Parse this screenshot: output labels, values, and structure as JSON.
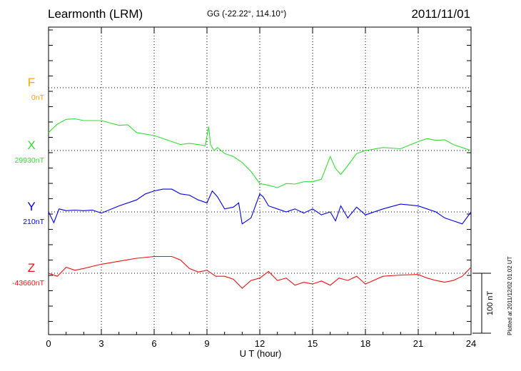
{
  "header": {
    "station": "Learmonth (LRM)",
    "coords": "GG (-22.22°, 114.10°)",
    "date": "2011/11/01"
  },
  "footer": {
    "plotted": "Plotted at 2011/12/02 01:02 UT"
  },
  "chart_data": {
    "type": "line",
    "title": "Learmonth (LRM)",
    "xlabel": "U T (hour)",
    "xlim": [
      0,
      24
    ],
    "x_ticks": [
      0,
      3,
      6,
      9,
      12,
      15,
      18,
      21,
      24
    ],
    "grid": true,
    "scale_bar": {
      "label": "100 nT",
      "value_nT": 100
    },
    "series": [
      {
        "name": "F",
        "baseline_label": "0nT",
        "color": "#ffa500",
        "x": [],
        "y": []
      },
      {
        "name": "X",
        "baseline_label": "29930nT",
        "color": "#33dd33",
        "x": [
          0,
          0.5,
          1,
          1.5,
          2,
          3,
          4,
          4.5,
          5,
          6,
          7,
          7.5,
          8,
          8.5,
          8.9,
          9.1,
          9.2,
          9.4,
          9.6,
          10,
          10.5,
          11,
          11.5,
          12,
          12.5,
          13,
          13.5,
          14,
          14.5,
          15,
          15.5,
          16,
          16.3,
          16.6,
          17,
          17.5,
          18,
          19,
          20,
          21,
          21.5,
          22,
          22.5,
          23,
          23.5,
          24
        ],
        "y": [
          30,
          44,
          52,
          53,
          50,
          50,
          42,
          43,
          30,
          25,
          15,
          10,
          12,
          10,
          8,
          40,
          10,
          0,
          5,
          -5,
          -10,
          -20,
          -35,
          -55,
          -58,
          -62,
          -55,
          -56,
          -52,
          -52,
          -48,
          -10,
          -30,
          -40,
          -25,
          -5,
          0,
          5,
          3,
          15,
          20,
          17,
          18,
          10,
          5,
          0
        ]
      },
      {
        "name": "Y",
        "baseline_label": "210nT",
        "color": "#0000ee",
        "x": [
          0,
          0.3,
          0.6,
          1,
          1.5,
          2,
          2.5,
          3,
          4,
          5,
          5.5,
          6,
          6.5,
          7,
          7.5,
          8,
          8.5,
          9,
          9.3,
          9.6,
          10,
          10.5,
          10.8,
          11,
          11.5,
          12,
          12.2,
          12.5,
          13,
          13.5,
          14,
          14.5,
          15,
          15.5,
          16,
          16.3,
          16.6,
          17,
          17.5,
          18,
          19,
          20,
          21,
          21.5,
          22,
          22.5,
          23,
          23.5,
          24
        ],
        "y": [
          0,
          -18,
          5,
          2,
          3,
          2,
          3,
          -2,
          10,
          20,
          30,
          35,
          38,
          38,
          30,
          28,
          20,
          15,
          35,
          25,
          5,
          8,
          15,
          -20,
          -10,
          30,
          25,
          10,
          5,
          0,
          5,
          -2,
          5,
          -5,
          0,
          -15,
          10,
          -10,
          8,
          -5,
          5,
          13,
          10,
          5,
          0,
          -10,
          -15,
          -20,
          0
        ]
      },
      {
        "name": "Z",
        "baseline_label": "-43660nT",
        "color": "#ee1111",
        "x": [
          0,
          0.5,
          1,
          1.5,
          2,
          3,
          4,
          5,
          6,
          7,
          7.5,
          8,
          8.5,
          9,
          9.5,
          10,
          10.5,
          11,
          11.5,
          12,
          12.5,
          13,
          13.5,
          14,
          14.5,
          15,
          15.5,
          16,
          16.5,
          17,
          17.5,
          18,
          19,
          20,
          21,
          21.5,
          22,
          22.5,
          23,
          23.5,
          24
        ],
        "y": [
          0,
          -5,
          10,
          5,
          8,
          15,
          20,
          25,
          28,
          28,
          22,
          8,
          2,
          5,
          -5,
          -5,
          -10,
          -25,
          -12,
          -8,
          3,
          -12,
          -8,
          -20,
          -15,
          -18,
          -13,
          -20,
          -8,
          -12,
          -5,
          -18,
          -5,
          -3,
          -2,
          -8,
          -12,
          -15,
          -12,
          -5,
          10
        ]
      }
    ]
  }
}
